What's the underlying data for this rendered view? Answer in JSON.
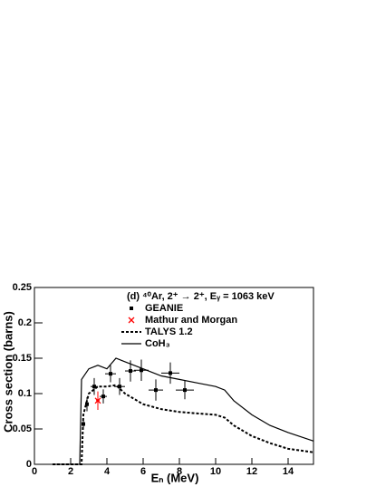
{
  "chart_data": {
    "type": "line",
    "legend_title": "(d) ⁴⁰Ar, 2⁺ → 2⁺, Eᵧ = 1063 keV",
    "xlabel": "Eₙ (MeV)",
    "ylabel": "Cross section (barns)",
    "xlim": [
      0,
      15.4
    ],
    "ylim": [
      0,
      0.25
    ],
    "xticks": [
      0,
      2,
      4,
      6,
      8,
      10,
      12,
      14
    ],
    "yticks": [
      0,
      0.05,
      0.1,
      0.15,
      0.2,
      0.25
    ],
    "series": [
      {
        "name": "GEANIE",
        "color": "#000000",
        "marker": "square",
        "x": [
          2.7,
          2.9,
          3.3,
          3.8,
          4.2,
          4.7,
          5.3,
          5.9,
          6.7,
          7.5,
          8.3
        ],
        "values": [
          0.057,
          0.085,
          0.11,
          0.096,
          0.128,
          0.11,
          0.132,
          0.133,
          0.105,
          0.129,
          0.105
        ],
        "xerr": [
          0.1,
          0.1,
          0.2,
          0.2,
          0.3,
          0.3,
          0.3,
          0.4,
          0.4,
          0.5,
          0.5
        ],
        "yerr": [
          0.008,
          0.01,
          0.012,
          0.01,
          0.012,
          0.012,
          0.015,
          0.015,
          0.015,
          0.015,
          0.013
        ]
      },
      {
        "name": "Mathur and Morgan",
        "color": "#ff0000",
        "marker": "x",
        "x": [
          3.5
        ],
        "values": [
          0.09
        ],
        "xerr": [
          0.1
        ],
        "yerr": [
          0.013
        ]
      },
      {
        "name": "TALYS 1.2",
        "color": "#000000",
        "style": "dotted",
        "x": [
          1.0,
          2.6,
          2.7,
          3.0,
          3.5,
          4.0,
          4.5,
          5.0,
          6.0,
          7.0,
          8.0,
          9.0,
          10.0,
          10.5,
          11.0,
          12.0,
          13.0,
          14.0,
          15.4
        ],
        "values": [
          0,
          0,
          0.07,
          0.1,
          0.11,
          0.11,
          0.112,
          0.1,
          0.085,
          0.078,
          0.074,
          0.072,
          0.07,
          0.066,
          0.055,
          0.04,
          0.03,
          0.022,
          0.017
        ]
      },
      {
        "name": "CoH₃",
        "color": "#000000",
        "style": "solid",
        "x": [
          1.0,
          2.5,
          2.6,
          3.0,
          3.5,
          4.0,
          4.5,
          5.0,
          6.0,
          7.0,
          8.0,
          9.0,
          10.0,
          10.5,
          11.0,
          12.0,
          13.0,
          14.0,
          15.4
        ],
        "values": [
          0,
          0,
          0.12,
          0.135,
          0.14,
          0.135,
          0.15,
          0.145,
          0.135,
          0.125,
          0.12,
          0.115,
          0.11,
          0.105,
          0.09,
          0.07,
          0.055,
          0.045,
          0.033
        ]
      }
    ]
  }
}
